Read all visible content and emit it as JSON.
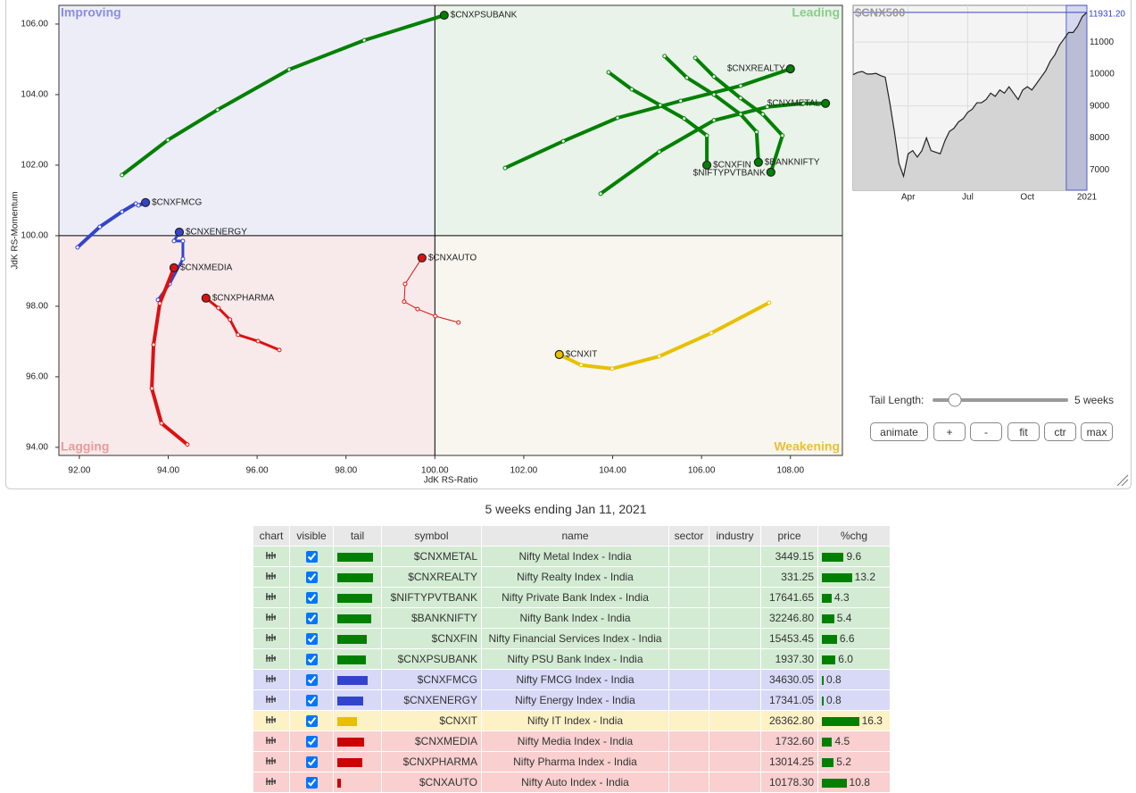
{
  "chart_data": [
    {
      "type": "rrg",
      "xlabel": "JdK RS-Ratio",
      "ylabel": "JdK RS-Momentum",
      "quadrants": [
        "Improving",
        "Leading",
        "Lagging",
        "Weakening"
      ],
      "origin": [
        100,
        100
      ],
      "xlim": [
        91.54,
        109.17
      ],
      "ylim": [
        93.77,
        106.53
      ],
      "xticks": [
        {
          "value": 92,
          "label": "92.00"
        },
        {
          "value": 94,
          "label": "94.00"
        },
        {
          "value": 96,
          "label": "96.00"
        },
        {
          "value": 98,
          "label": "98.00"
        },
        {
          "value": 100,
          "label": "100.00"
        },
        {
          "value": 102,
          "label": "102.00"
        },
        {
          "value": 104,
          "label": "104.00"
        },
        {
          "value": 106,
          "label": "106.00"
        },
        {
          "value": 108,
          "label": "108.00"
        }
      ],
      "yticks": [
        {
          "value": 94,
          "label": "94.00"
        },
        {
          "value": 96,
          "label": "96.00"
        },
        {
          "value": 98,
          "label": "98.00"
        },
        {
          "value": 100,
          "label": "100.00"
        },
        {
          "value": 102,
          "label": "102.00"
        },
        {
          "value": 104,
          "label": "104.00"
        },
        {
          "value": 106,
          "label": "106.00"
        }
      ],
      "series": [
        {
          "name": "$CNXMETAL",
          "color": "#008000",
          "line_width": 4,
          "x": [
            103.73,
            105.05,
            106.28,
            107.48,
            108.29,
            108.79
          ],
          "y": [
            101.19,
            102.38,
            103.27,
            103.65,
            103.75,
            103.75
          ]
        },
        {
          "name": "$CNXREALTY",
          "color": "#008000",
          "line_width": 4,
          "x": [
            101.58,
            102.89,
            104.11,
            105.53,
            106.88,
            108.0
          ],
          "y": [
            101.92,
            102.68,
            103.34,
            103.82,
            104.25,
            104.73
          ]
        },
        {
          "name": "$NIFTYPVTBANK",
          "color": "#008000",
          "line_width": 4,
          "x": [
            105.86,
            106.28,
            106.88,
            107.38,
            107.82,
            107.56
          ],
          "y": [
            105.04,
            104.51,
            103.9,
            103.44,
            102.84,
            101.8
          ]
        },
        {
          "name": "$BANKNIFTY",
          "color": "#008000",
          "line_width": 4,
          "x": [
            105.17,
            105.67,
            106.28,
            106.88,
            107.24,
            107.28
          ],
          "y": [
            105.09,
            104.48,
            104.0,
            103.44,
            102.94,
            102.08
          ]
        },
        {
          "name": "$CNXFIN",
          "color": "#008000",
          "line_width": 4,
          "x": [
            103.91,
            104.43,
            105.07,
            105.61,
            106.12,
            106.12
          ],
          "y": [
            104.63,
            104.15,
            103.7,
            103.32,
            102.84,
            102.0
          ]
        },
        {
          "name": "$CNXPSUBANK",
          "color": "#008000",
          "line_width": 4,
          "x": [
            92.96,
            93.99,
            95.11,
            96.72,
            98.41,
            100.21
          ],
          "y": [
            101.72,
            102.71,
            103.57,
            104.71,
            105.54,
            106.25
          ]
        },
        {
          "name": "$CNXFMCG",
          "color": "#3344cc",
          "line_width": 4,
          "x": [
            91.96,
            92.46,
            92.96,
            93.27,
            93.33,
            93.49
          ],
          "y": [
            99.67,
            100.25,
            100.68,
            100.91,
            100.86,
            100.94
          ]
        },
        {
          "name": "$CNXENERGY",
          "color": "#3344cc",
          "line_width": 3,
          "x": [
            93.77,
            94.03,
            94.33,
            94.33,
            94.13,
            94.25
          ],
          "y": [
            98.18,
            98.63,
            99.34,
            99.85,
            99.85,
            100.1
          ]
        },
        {
          "name": "$CNXIT",
          "color": "#e8c000",
          "line_width": 4,
          "x": [
            107.52,
            106.22,
            105.05,
            103.99,
            103.29,
            102.8
          ],
          "y": [
            98.1,
            97.24,
            96.58,
            96.23,
            96.33,
            96.63
          ]
        },
        {
          "name": "$CNXMEDIA",
          "color": "#dd1111",
          "line_width": 4,
          "x": [
            94.43,
            93.85,
            93.63,
            93.67,
            93.81,
            94.13
          ],
          "y": [
            94.08,
            94.68,
            95.67,
            96.91,
            98.08,
            99.09
          ]
        },
        {
          "name": "$CNXPHARMA",
          "color": "#dd1111",
          "line_width": 3,
          "x": [
            96.5,
            96.02,
            95.57,
            95.39,
            95.13,
            94.85
          ],
          "y": [
            96.76,
            97.01,
            97.19,
            97.62,
            97.95,
            98.23
          ]
        },
        {
          "name": "$CNXAUTO",
          "color": "#dd1111",
          "line_width": 1,
          "x": [
            100.53,
            100.01,
            99.61,
            99.31,
            99.33,
            99.71
          ],
          "y": [
            97.54,
            97.72,
            97.92,
            98.13,
            98.63,
            99.37
          ]
        }
      ]
    },
    {
      "type": "line",
      "title": "$CNX500",
      "color": "#222222",
      "categories": [
        null,
        null,
        null,
        null,
        null,
        null,
        null,
        null,
        null,
        null,
        null,
        null,
        "Apr",
        null,
        null,
        null,
        null,
        null,
        null,
        null,
        null,
        null,
        null,
        null,
        null,
        "Jul",
        null,
        null,
        null,
        null,
        null,
        null,
        null,
        null,
        null,
        null,
        null,
        null,
        "Oct",
        null,
        null,
        null,
        null,
        null,
        null,
        null,
        null,
        null,
        null,
        null,
        null,
        "2021"
      ],
      "values": [
        9980,
        10050,
        10080,
        10000,
        10000,
        10020,
        9950,
        9900,
        9100,
        8200,
        7200,
        6800,
        7500,
        7600,
        7400,
        7600,
        8000,
        7600,
        7550,
        7500,
        7900,
        8200,
        8300,
        8500,
        8600,
        8800,
        8900,
        9100,
        9100,
        9200,
        9400,
        9300,
        9500,
        9400,
        9600,
        9400,
        9200,
        9500,
        9600,
        9500,
        9700,
        9900,
        10100,
        10400,
        10600,
        10900,
        11100,
        11300,
        11300,
        11500,
        11800,
        11931.2
      ],
      "value_labels": [
        null,
        null,
        null,
        null,
        null,
        null,
        null,
        null,
        null,
        null,
        null,
        null,
        null,
        null,
        null,
        null,
        null,
        null,
        null,
        null,
        null,
        null,
        null,
        null,
        null,
        null,
        null,
        null,
        null,
        null,
        null,
        null,
        null,
        null,
        null,
        null,
        null,
        null,
        null,
        null,
        null,
        null,
        null,
        null,
        null,
        null,
        null,
        null,
        null,
        null,
        null,
        "11931.20"
      ],
      "ylim": [
        6360,
        12150
      ],
      "yticks": [
        7000,
        8000,
        9000,
        10000,
        11000
      ]
    }
  ],
  "controls": {
    "tail_label": "Tail Length:",
    "tail_value": "5 weeks",
    "buttons": [
      "animate",
      "+",
      "-",
      "fit",
      "ctr",
      "max"
    ]
  },
  "caption": "5 weeks ending Jan 11, 2021",
  "table": {
    "columns": [
      "chart",
      "visible",
      "tail",
      "symbol",
      "name",
      "sector",
      "industry",
      "price",
      "%chg"
    ],
    "rows": [
      {
        "symbol": "$CNXMETAL",
        "name": "Nifty Metal Index - India",
        "price": "3449.15",
        "chg": 9.6,
        "tail": 40,
        "color": "#008000"
      },
      {
        "symbol": "$CNXREALTY",
        "name": "Nifty Realty Index - India",
        "price": "331.25",
        "chg": 13.2,
        "tail": 40,
        "color": "#008000"
      },
      {
        "symbol": "$NIFTYPVTBANK",
        "name": "Nifty Private Bank Index - India",
        "price": "17641.65",
        "chg": 4.3,
        "tail": 39,
        "color": "#008000"
      },
      {
        "symbol": "$BANKNIFTY",
        "name": "Nifty Bank Index - India",
        "price": "32246.80",
        "chg": 5.4,
        "tail": 38,
        "color": "#008000"
      },
      {
        "symbol": "$CNXFIN",
        "name": "Nifty Financial Services Index - India",
        "price": "15453.45",
        "chg": 6.6,
        "tail": 33,
        "color": "#008000"
      },
      {
        "symbol": "$CNXPSUBANK",
        "name": "Nifty PSU Bank Index - India",
        "price": "1937.30",
        "chg": {
          "value": 6,
          "label": "6.0"
        },
        "tail": 32,
        "color": "#008000"
      },
      {
        "symbol": "$CNXFMCG",
        "name": "Nifty FMCG Index - India",
        "price": "34630.05",
        "chg": 0.8,
        "tail": 34,
        "color": "#3344cc"
      },
      {
        "symbol": "$CNXENERGY",
        "name": "Nifty Energy Index - India",
        "price": "17341.05",
        "chg": 0.8,
        "tail": 29,
        "color": "#3344cc"
      },
      {
        "symbol": "$CNXIT",
        "name": "Nifty IT Index - India",
        "price": "26362.80",
        "chg": 16.3,
        "tail": 22,
        "color": "#e8c000"
      },
      {
        "symbol": "$CNXMEDIA",
        "name": "Nifty Media Index - India",
        "price": "1732.60",
        "chg": 4.5,
        "tail": 30,
        "color": "#cc0000"
      },
      {
        "symbol": "$CNXPHARMA",
        "name": "Nifty Pharma Index - India",
        "price": "13014.25",
        "chg": 5.2,
        "tail": 28,
        "color": "#cc0000"
      },
      {
        "symbol": "$CNXAUTO",
        "name": "Nifty Auto Index - India",
        "price": "10178.30",
        "chg": 10.8,
        "tail": 4,
        "color": "#cc0000"
      }
    ]
  }
}
